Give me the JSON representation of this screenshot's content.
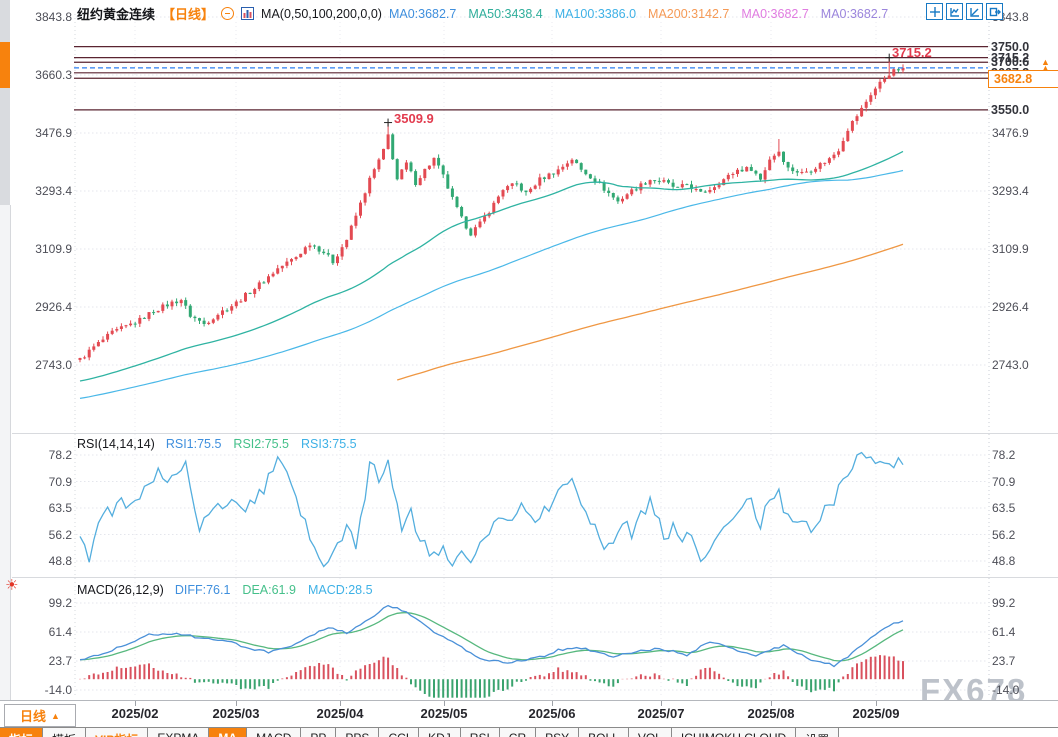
{
  "header": {
    "symbol": "纽约黄金连续",
    "period_tag": "【日线】",
    "ma_label": "MA(0,50,100,200,0,0)",
    "ma_values": [
      {
        "label": "MA0:3682.7",
        "color": "#3f8fdd"
      },
      {
        "label": "MA50:3438.4",
        "color": "#2fae9b"
      },
      {
        "label": "MA100:3386.0",
        "color": "#3eb1e6"
      },
      {
        "label": "MA200:3142.7",
        "color": "#f59a56"
      },
      {
        "label": "MA0:3682.7",
        "color": "#e07ce0"
      },
      {
        "label": "MA0:3682.7",
        "color": "#9b85dc"
      }
    ]
  },
  "toolbar_icons": [
    {
      "name": "pan-tool-icon"
    },
    {
      "name": "auto-scale-icon"
    },
    {
      "name": "axis-scale-icon"
    },
    {
      "name": "new-window-icon"
    }
  ],
  "axes": {
    "main_labels": [
      "3843.8",
      "3660.3",
      "3476.9",
      "3293.4",
      "3109.9",
      "2926.4",
      "2743.0"
    ],
    "rsi_labels": [
      "78.2",
      "70.9",
      "63.5",
      "56.2",
      "48.8"
    ],
    "macd_labels": [
      "99.2",
      "61.4",
      "23.7",
      "-14.0"
    ]
  },
  "levels": [
    {
      "label": "3750.0",
      "price": 3750.0
    },
    {
      "label": "3715.2",
      "price": 3715.2
    },
    {
      "label": "3700.6",
      "price": 3700.6
    },
    {
      "label": "3667.3",
      "price": 3667.3
    },
    {
      "label": "3650.0",
      "price": 3650.0
    },
    {
      "label": "3550.0",
      "price": 3550.0
    }
  ],
  "current_price": {
    "label": "3682.8",
    "price": 3682.8
  },
  "annotations": {
    "april_high_label": "3509.9",
    "sep_high_label": "3715.2"
  },
  "rsi_header": {
    "title": "RSI(14,14,14)",
    "items": [
      {
        "label": "RSI1:75.5",
        "color": "#3f8fdd"
      },
      {
        "label": "RSI2:75.5",
        "color": "#45c08a"
      },
      {
        "label": "RSI3:75.5",
        "color": "#3eb1e6"
      }
    ]
  },
  "macd_header": {
    "title": "MACD(26,12,9)",
    "items": [
      {
        "label": "DIFF:76.1",
        "color": "#3f8fdd"
      },
      {
        "label": "DEA:61.9",
        "color": "#45c08a"
      },
      {
        "label": "MACD:28.5",
        "color": "#3eb1e6"
      }
    ]
  },
  "time_axis": {
    "period_label": "日线",
    "period_arrow": "▲",
    "months": [
      "2025/02",
      "2025/03",
      "2025/04",
      "2025/05",
      "2025/06",
      "2025/07",
      "2025/08",
      "2025/09"
    ]
  },
  "bottom_tabs": [
    {
      "label": "指标",
      "name": "tab-indicators",
      "style": "orange-bg"
    },
    {
      "label": "模板",
      "name": "tab-templates",
      "style": ""
    },
    {
      "label": "VIP指标",
      "name": "tab-vip-indicators",
      "style": "orange-text"
    },
    {
      "label": "EXPMA",
      "name": "tab-expma",
      "style": ""
    },
    {
      "label": "MA",
      "name": "tab-ma",
      "style": "orange-bg"
    },
    {
      "label": "MACD",
      "name": "tab-macd",
      "style": ""
    },
    {
      "label": "PP",
      "name": "tab-pp",
      "style": ""
    },
    {
      "label": "PPS",
      "name": "tab-pps",
      "style": ""
    },
    {
      "label": "CCI",
      "name": "tab-cci",
      "style": ""
    },
    {
      "label": "KDJ",
      "name": "tab-kdj",
      "style": ""
    },
    {
      "label": "RSI",
      "name": "tab-rsi",
      "style": ""
    },
    {
      "label": "CR",
      "name": "tab-cr",
      "style": ""
    },
    {
      "label": "PSY",
      "name": "tab-psy",
      "style": ""
    },
    {
      "label": "BOLL",
      "name": "tab-boll",
      "style": ""
    },
    {
      "label": "VOL",
      "name": "tab-vol",
      "style": ""
    },
    {
      "label": "ICHIMOKU CLOUD",
      "name": "tab-ichimoku-cloud",
      "style": ""
    },
    {
      "label": "设置",
      "name": "tab-settings",
      "style": ""
    }
  ],
  "watermark": "FX678",
  "colors": {
    "up": "#e34a52",
    "down": "#31a873",
    "ma50": "#2fb3a2",
    "ma100": "#4ab8e8",
    "ma200": "#ef9743",
    "rsi": "#54aede",
    "diff": "#4a90d8",
    "dea": "#57b87e",
    "hist_pos": "#d9515e",
    "hist_neg": "#3aa36e",
    "level": "#5a2431",
    "current_blue": "#2c7ff0",
    "accent": "#f7820d"
  },
  "chart_data": {
    "type": "candlestick",
    "title": "纽约黄金连续 日线 (NY Gold continuous, daily)",
    "x_categories": [
      "2025/02",
      "2025/03",
      "2025/04",
      "2025/05",
      "2025/06",
      "2025/07",
      "2025/08",
      "2025/09"
    ],
    "y_axis_labels": [
      3843.8,
      3660.3,
      3476.9,
      3293.4,
      3109.9,
      2926.4,
      2743.0
    ],
    "price_path": [
      [
        0,
        2760
      ],
      [
        3,
        2800
      ],
      [
        7,
        2845
      ],
      [
        10,
        2865
      ],
      [
        13,
        2885
      ],
      [
        16,
        2915
      ],
      [
        20,
        2940
      ],
      [
        22,
        2950
      ],
      [
        24,
        2900
      ],
      [
        27,
        2873
      ],
      [
        30,
        2905
      ],
      [
        34,
        2940
      ],
      [
        37,
        2975
      ],
      [
        40,
        3010
      ],
      [
        43,
        3048
      ],
      [
        47,
        3085
      ],
      [
        50,
        3128
      ],
      [
        53,
        3100
      ],
      [
        55,
        3070
      ],
      [
        58,
        3140
      ],
      [
        60,
        3215
      ],
      [
        63,
        3330
      ],
      [
        66,
        3420
      ],
      [
        67,
        3470
      ],
      [
        69,
        3330
      ],
      [
        71,
        3380
      ],
      [
        73,
        3320
      ],
      [
        75,
        3360
      ],
      [
        77,
        3395
      ],
      [
        79,
        3340
      ],
      [
        81,
        3268
      ],
      [
        83,
        3205
      ],
      [
        85,
        3160
      ],
      [
        87,
        3190
      ],
      [
        90,
        3252
      ],
      [
        92,
        3300
      ],
      [
        95,
        3315
      ],
      [
        97,
        3285
      ],
      [
        100,
        3330
      ],
      [
        104,
        3360
      ],
      [
        107,
        3395
      ],
      [
        109,
        3360
      ],
      [
        112,
        3330
      ],
      [
        114,
        3300
      ],
      [
        117,
        3260
      ],
      [
        119,
        3285
      ],
      [
        122,
        3312
      ],
      [
        124,
        3330
      ],
      [
        127,
        3322
      ],
      [
        130,
        3300
      ],
      [
        132,
        3315
      ],
      [
        135,
        3285
      ],
      [
        137,
        3300
      ],
      [
        140,
        3330
      ],
      [
        143,
        3360
      ],
      [
        146,
        3365
      ],
      [
        148,
        3330
      ],
      [
        150,
        3395
      ],
      [
        152,
        3420
      ],
      [
        154,
        3365
      ],
      [
        157,
        3350
      ],
      [
        159,
        3362
      ],
      [
        161,
        3378
      ],
      [
        163,
        3395
      ],
      [
        165,
        3425
      ],
      [
        167,
        3490
      ],
      [
        170,
        3553
      ],
      [
        172,
        3600
      ],
      [
        174,
        3635
      ],
      [
        176,
        3665
      ],
      [
        177,
        3672
      ],
      [
        179,
        3682.8
      ]
    ],
    "key_points": {
      "april_high": 3509.9,
      "sep_high": 3715.2,
      "last_close": 3682.8,
      "levels": [
        3750.0,
        3715.2,
        3700.6,
        3667.3,
        3650.0,
        3550.0
      ]
    },
    "moving_averages": {
      "ma50_last": 3438.4,
      "ma100_last": 3386.0,
      "ma200_last": 3142.7
    },
    "rsi": {
      "params": "14,14,14",
      "last": 75.5,
      "axis_range": [
        48.8,
        78.2
      ],
      "path": [
        [
          0,
          57
        ],
        [
          2,
          50
        ],
        [
          4,
          60
        ],
        [
          7,
          63
        ],
        [
          9,
          65
        ],
        [
          11,
          63
        ],
        [
          13,
          67
        ],
        [
          16,
          70
        ],
        [
          17,
          73
        ],
        [
          19,
          71
        ],
        [
          21,
          74
        ],
        [
          23,
          77
        ],
        [
          24,
          71
        ],
        [
          26,
          58
        ],
        [
          28,
          62
        ],
        [
          30,
          64
        ],
        [
          32,
          63
        ],
        [
          34,
          66
        ],
        [
          36,
          62
        ],
        [
          37,
          65
        ],
        [
          40,
          69
        ],
        [
          42,
          75
        ],
        [
          43,
          76
        ],
        [
          46,
          70
        ],
        [
          48,
          62
        ],
        [
          50,
          55
        ],
        [
          52,
          50
        ],
        [
          53,
          48
        ],
        [
          56,
          53
        ],
        [
          58,
          57
        ],
        [
          60,
          54
        ],
        [
          61,
          60
        ],
        [
          63,
          75
        ],
        [
          65,
          72
        ],
        [
          67,
          77
        ],
        [
          69,
          65
        ],
        [
          70,
          58
        ],
        [
          72,
          62
        ],
        [
          74,
          55
        ],
        [
          76,
          50
        ],
        [
          77,
          53
        ],
        [
          79,
          51
        ],
        [
          81,
          48
        ],
        [
          83,
          50
        ],
        [
          85,
          47
        ],
        [
          87,
          52
        ],
        [
          89,
          58
        ],
        [
          91,
          62
        ],
        [
          93,
          60
        ],
        [
          96,
          65
        ],
        [
          98,
          63
        ],
        [
          100,
          60
        ],
        [
          102,
          64
        ],
        [
          104,
          68
        ],
        [
          107,
          71
        ],
        [
          109,
          66
        ],
        [
          111,
          60
        ],
        [
          113,
          56
        ],
        [
          115,
          52
        ],
        [
          117,
          55
        ],
        [
          119,
          60
        ],
        [
          120,
          57
        ],
        [
          122,
          62
        ],
        [
          124,
          65
        ],
        [
          126,
          60
        ],
        [
          127,
          56
        ],
        [
          129,
          58
        ],
        [
          131,
          54
        ],
        [
          133,
          57
        ],
        [
          134,
          52
        ],
        [
          136,
          48
        ],
        [
          138,
          53
        ],
        [
          140,
          57
        ],
        [
          141,
          60
        ],
        [
          143,
          64
        ],
        [
          145,
          67
        ],
        [
          147,
          62
        ],
        [
          148,
          58
        ],
        [
          150,
          66
        ],
        [
          152,
          70
        ],
        [
          153,
          63
        ],
        [
          155,
          58
        ],
        [
          157,
          60
        ],
        [
          159,
          56
        ],
        [
          160,
          60
        ],
        [
          162,
          63
        ],
        [
          164,
          66
        ],
        [
          166,
          70
        ],
        [
          167,
          74
        ],
        [
          169,
          77
        ],
        [
          171,
          79
        ],
        [
          173,
          76
        ],
        [
          174,
          78
        ],
        [
          176,
          74
        ],
        [
          177,
          76
        ],
        [
          179,
          75.5
        ]
      ]
    },
    "macd": {
      "params": "26,12,9",
      "diff_last": 76.1,
      "dea_last": 61.9,
      "hist_last": 28.5,
      "axis_range": [
        -14.0,
        99.2
      ],
      "diff_path": [
        [
          0,
          25
        ],
        [
          7,
          38
        ],
        [
          15,
          58
        ],
        [
          21,
          60
        ],
        [
          25,
          55
        ],
        [
          33,
          48
        ],
        [
          37,
          40
        ],
        [
          41,
          35
        ],
        [
          46,
          42
        ],
        [
          50,
          55
        ],
        [
          54,
          68
        ],
        [
          58,
          60
        ],
        [
          61,
          70
        ],
        [
          67,
          96
        ],
        [
          71,
          88
        ],
        [
          76,
          65
        ],
        [
          82,
          45
        ],
        [
          86,
          30
        ],
        [
          89,
          24
        ],
        [
          93,
          22
        ],
        [
          98,
          26
        ],
        [
          101,
          30
        ],
        [
          104,
          38
        ],
        [
          108,
          42
        ],
        [
          111,
          38
        ],
        [
          114,
          32
        ],
        [
          116,
          30
        ],
        [
          120,
          34
        ],
        [
          123,
          38
        ],
        [
          126,
          40
        ],
        [
          129,
          36
        ],
        [
          132,
          30
        ],
        [
          135,
          42
        ],
        [
          137,
          48
        ],
        [
          140,
          44
        ],
        [
          143,
          36
        ],
        [
          147,
          30
        ],
        [
          150,
          38
        ],
        [
          153,
          44
        ],
        [
          155,
          36
        ],
        [
          158,
          28
        ],
        [
          161,
          22
        ],
        [
          164,
          18
        ],
        [
          167,
          30
        ],
        [
          171,
          48
        ],
        [
          174,
          62
        ],
        [
          177,
          72
        ],
        [
          179,
          76.1
        ]
      ]
    }
  }
}
